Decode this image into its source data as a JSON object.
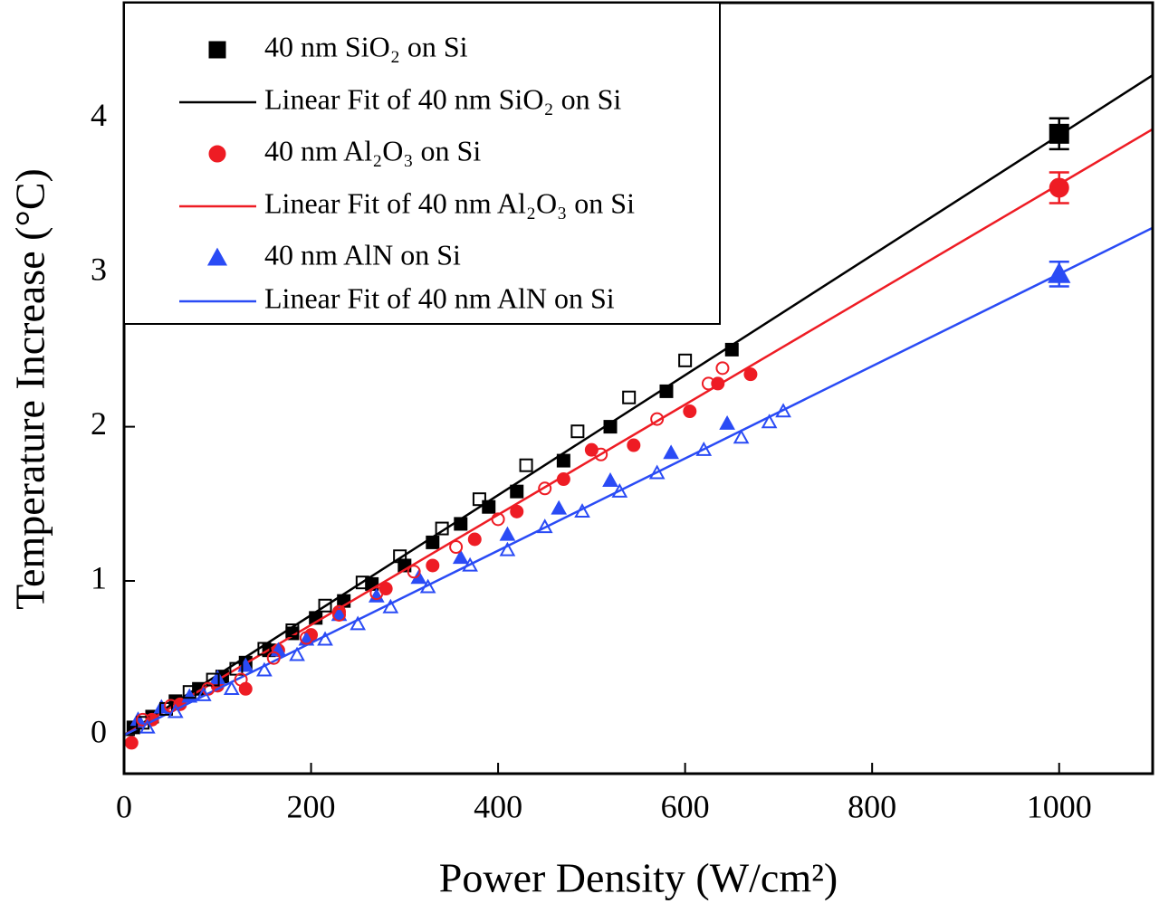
{
  "chart_data": {
    "type": "scatter",
    "x_label": "Power Density (W/cm²)",
    "y_label": "Temperature Increase (°C)",
    "xlim": [
      0,
      1100
    ],
    "ylim": [
      -0.25,
      4.75
    ],
    "xticks": [
      0,
      200,
      400,
      600,
      800,
      1000
    ],
    "yticks": [
      0,
      1,
      2,
      3,
      4
    ],
    "legend": "upper left",
    "series": [
      {
        "name": "40 nm SiO₂ on Si",
        "color": "#000000",
        "marker": "square",
        "filled": true,
        "x": [
          10,
          30,
          55,
          80,
          105,
          130,
          155,
          180,
          205,
          235,
          265,
          300,
          330,
          360,
          390,
          420,
          470,
          520,
          580,
          650,
          1000
        ],
        "values": [
          0.05,
          0.12,
          0.22,
          0.3,
          0.38,
          0.47,
          0.55,
          0.66,
          0.76,
          0.87,
          0.98,
          1.1,
          1.25,
          1.37,
          1.48,
          1.58,
          1.78,
          2.0,
          2.23,
          2.5,
          3.9
        ],
        "errors": [
          null,
          null,
          null,
          null,
          null,
          null,
          null,
          null,
          null,
          null,
          null,
          null,
          null,
          null,
          null,
          null,
          null,
          null,
          null,
          null,
          0.1
        ]
      },
      {
        "name": "Linear Fit of 40 nm SiO₂ on Si",
        "color": "#000000",
        "style": "line",
        "x": [
          0,
          1100
        ],
        "values": [
          0,
          4.28
        ]
      },
      {
        "name": "40 nm Al₂O₃ on Si",
        "color": "#ee1c24",
        "marker": "circle",
        "filled": true,
        "x": [
          8,
          30,
          60,
          100,
          130,
          165,
          200,
          230,
          280,
          330,
          375,
          420,
          470,
          500,
          545,
          605,
          635,
          670,
          1000
        ],
        "values": [
          -0.05,
          0.1,
          0.2,
          0.32,
          0.3,
          0.55,
          0.65,
          0.8,
          0.95,
          1.1,
          1.27,
          1.45,
          1.66,
          1.85,
          1.88,
          2.1,
          2.28,
          2.34,
          3.55
        ],
        "errors": [
          null,
          null,
          null,
          null,
          null,
          null,
          null,
          null,
          null,
          null,
          null,
          null,
          null,
          null,
          null,
          null,
          null,
          null,
          0.1
        ]
      },
      {
        "name": "Linear Fit of 40 nm Al₂O₃ on Si",
        "color": "#ee1c24",
        "style": "line",
        "x": [
          0,
          1100
        ],
        "values": [
          0,
          3.93
        ]
      },
      {
        "name": "40 nm AlN on Si",
        "color": "#2a4bf5",
        "marker": "triangle",
        "filled": true,
        "x": [
          15,
          40,
          70,
          100,
          130,
          165,
          195,
          230,
          270,
          315,
          360,
          410,
          465,
          520,
          585,
          645,
          1000
        ],
        "values": [
          0.1,
          0.18,
          0.25,
          0.37,
          0.45,
          0.55,
          0.62,
          0.78,
          0.9,
          1.02,
          1.15,
          1.3,
          1.47,
          1.65,
          1.83,
          2.02,
          2.99
        ],
        "errors": [
          null,
          null,
          null,
          null,
          null,
          null,
          null,
          null,
          null,
          null,
          null,
          null,
          null,
          null,
          null,
          null,
          0.08
        ]
      },
      {
        "name": "Linear Fit of 40 nm AlN on Si",
        "color": "#2a4bf5",
        "style": "line",
        "x": [
          0,
          1100
        ],
        "values": [
          0,
          3.29
        ]
      },
      {
        "color": "#000000",
        "marker": "square",
        "filled": false,
        "x": [
          20,
          45,
          70,
          95,
          120,
          150,
          180,
          215,
          255,
          295,
          340,
          380,
          430,
          485,
          540,
          600
        ],
        "values": [
          0.08,
          0.17,
          0.28,
          0.36,
          0.43,
          0.56,
          0.68,
          0.84,
          0.99,
          1.16,
          1.34,
          1.53,
          1.75,
          1.97,
          2.19,
          2.43
        ]
      },
      {
        "color": "#ee1c24",
        "marker": "circle",
        "filled": false,
        "x": [
          20,
          50,
          90,
          125,
          160,
          195,
          230,
          270,
          310,
          355,
          400,
          450,
          510,
          570,
          625,
          640
        ],
        "values": [
          0.1,
          0.19,
          0.3,
          0.36,
          0.5,
          0.63,
          0.78,
          0.92,
          1.06,
          1.22,
          1.4,
          1.6,
          1.82,
          2.05,
          2.28,
          2.38
        ]
      },
      {
        "color": "#2a4bf5",
        "marker": "triangle",
        "filled": false,
        "x": [
          25,
          55,
          85,
          115,
          150,
          185,
          215,
          250,
          285,
          325,
          370,
          410,
          450,
          490,
          530,
          570,
          620,
          660,
          690,
          705
        ],
        "values": [
          0.05,
          0.15,
          0.26,
          0.3,
          0.42,
          0.52,
          0.62,
          0.72,
          0.83,
          0.96,
          1.1,
          1.2,
          1.35,
          1.45,
          1.58,
          1.7,
          1.85,
          1.93,
          2.03,
          2.1
        ]
      }
    ]
  }
}
